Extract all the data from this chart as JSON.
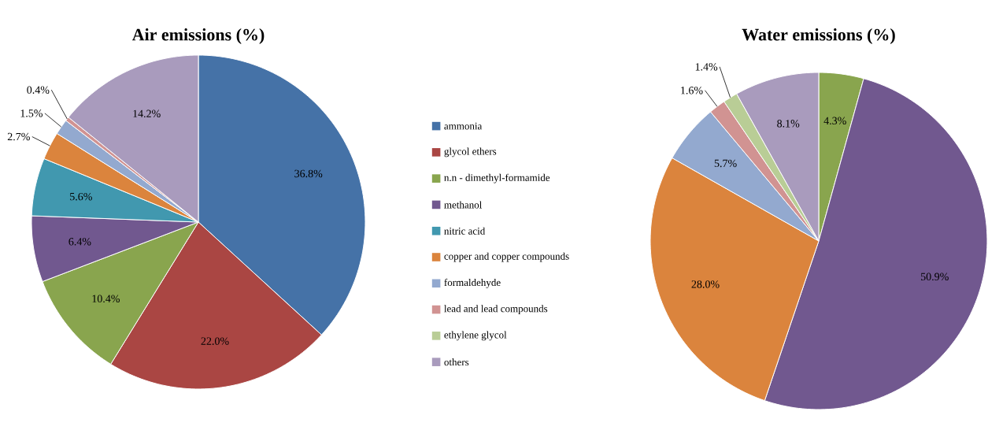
{
  "chart_data": [
    {
      "type": "pie",
      "title": "Air emissions (%)",
      "legend": "right",
      "categories": [
        "ammonia",
        "glycol ethers",
        "n.n - dimethyl-formamide",
        "methanol",
        "nitric acid",
        "copper and copper compounds",
        "formaldehyde",
        "lead and lead compounds",
        "ethylene glycol",
        "others"
      ],
      "values": [
        36.8,
        22.0,
        10.4,
        6.4,
        5.6,
        2.7,
        1.5,
        0.4,
        null,
        14.2
      ],
      "value_labels": [
        "36.8%",
        "22.0%",
        "10.4%",
        "6.4%",
        "5.6%",
        "2.7%",
        "1.5%",
        "0.4%",
        null,
        "14.2%"
      ],
      "colors": [
        "#4572a7",
        "#aa4643",
        "#89a54e",
        "#71588f",
        "#4198af",
        "#db843d",
        "#93a9cf",
        "#d19392",
        "#b9cd96",
        "#a99bbd"
      ]
    },
    {
      "type": "pie",
      "title": "Water emissions (%)",
      "categories": [
        null,
        null,
        null,
        null,
        null,
        null,
        null
      ],
      "values": [
        4.3,
        50.9,
        28.0,
        5.7,
        1.6,
        1.4,
        8.1
      ],
      "value_labels": [
        "4.3%",
        "50.9%",
        "28.0%",
        "5.7%",
        "1.6%",
        "1.4%",
        "8.1%"
      ],
      "colors": [
        "#89a54e",
        "#71588f",
        "#db843d",
        "#93a9cf",
        "#d19392",
        "#b9cd96",
        "#a99bbd"
      ]
    }
  ]
}
